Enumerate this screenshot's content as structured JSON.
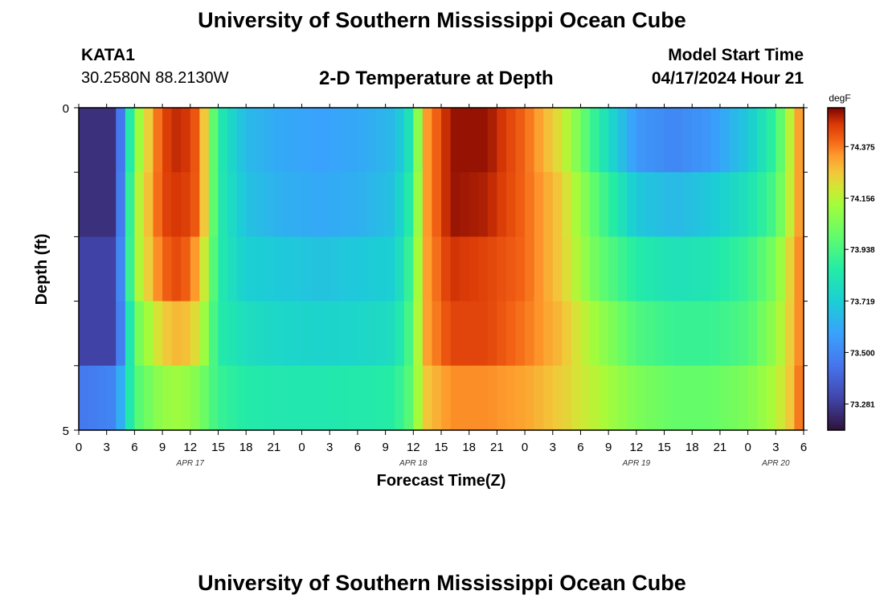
{
  "page": {
    "title": "University of Southern Mississippi Ocean Cube",
    "bottom_title": "University of Southern Mississippi Ocean Cube",
    "station_id": "KATA1",
    "station_coords": "30.2580N  88.2130W",
    "model_start_label": "Model Start Time",
    "model_start_value": "04/17/2024 Hour 21"
  },
  "chart_data": {
    "type": "heatmap",
    "title": "2-D Temperature at Depth",
    "xlabel": "Forecast Time(Z)",
    "ylabel": "Depth (ft)",
    "units": "degF",
    "x_ticks": [
      "0",
      "3",
      "6",
      "9",
      "12",
      "15",
      "18",
      "21",
      "0",
      "3",
      "6",
      "9",
      "12",
      "15",
      "18",
      "21",
      "0",
      "3",
      "6",
      "9",
      "12",
      "15",
      "18",
      "21",
      "0",
      "3",
      "6"
    ],
    "date_labels": [
      {
        "label": "APR 17",
        "hour_index": 12
      },
      {
        "label": "APR 18",
        "hour_index": 36
      },
      {
        "label": "APR 19",
        "hour_index": 60
      },
      {
        "label": "APR 20",
        "hour_index": 75
      }
    ],
    "x_range_hours": [
      0,
      78
    ],
    "y_range_ft": [
      0,
      5
    ],
    "y_tick_labels": [
      "0",
      "5"
    ],
    "depth_layers": 5,
    "colorbar_ticks": [
      "74.375",
      "74.156",
      "73.938",
      "73.719",
      "73.500",
      "73.281"
    ],
    "colorbar_tick_values": [
      74.375,
      74.156,
      73.938,
      73.719,
      73.5,
      73.281
    ],
    "vmin": 73.17,
    "vmax": 74.54,
    "time_hours": [
      0,
      4,
      6,
      9,
      11,
      13,
      15,
      18,
      22,
      26,
      30,
      34,
      36,
      37,
      40,
      44,
      48,
      52,
      56,
      60,
      64,
      68,
      72,
      75,
      77,
      78
    ],
    "series": [
      {
        "name": "0-1 ft",
        "values": [
          73.25,
          73.25,
          74.05,
          74.45,
          74.5,
          74.4,
          73.85,
          73.65,
          73.6,
          73.58,
          73.6,
          73.65,
          73.85,
          74.3,
          74.52,
          74.52,
          74.4,
          74.2,
          73.85,
          73.55,
          73.5,
          73.55,
          73.7,
          73.9,
          74.25,
          74.4
        ]
      },
      {
        "name": "1-2 ft",
        "values": [
          73.25,
          73.25,
          74.1,
          74.45,
          74.48,
          74.4,
          73.85,
          73.68,
          73.62,
          73.6,
          73.62,
          73.68,
          73.9,
          74.3,
          74.52,
          74.5,
          74.4,
          74.25,
          73.95,
          73.7,
          73.65,
          73.7,
          73.8,
          73.95,
          74.25,
          74.4
        ]
      },
      {
        "name": "2-3 ft",
        "values": [
          73.3,
          73.3,
          74.1,
          74.4,
          74.45,
          74.3,
          73.85,
          73.72,
          73.7,
          73.68,
          73.7,
          73.72,
          73.95,
          74.3,
          74.48,
          74.45,
          74.4,
          74.25,
          74.0,
          73.85,
          73.8,
          73.82,
          73.9,
          74.05,
          74.3,
          74.4
        ]
      },
      {
        "name": "3-4 ft",
        "values": [
          73.3,
          73.3,
          74.0,
          74.25,
          74.3,
          74.2,
          73.85,
          73.78,
          73.75,
          73.74,
          73.75,
          73.78,
          73.98,
          74.3,
          74.45,
          74.45,
          74.38,
          74.28,
          74.1,
          73.95,
          73.9,
          73.9,
          73.95,
          74.1,
          74.3,
          74.4
        ]
      },
      {
        "name": "4-5 ft",
        "values": [
          73.45,
          73.5,
          73.95,
          74.1,
          74.12,
          74.05,
          73.9,
          73.85,
          73.83,
          73.83,
          73.84,
          73.86,
          74.0,
          74.25,
          74.35,
          74.35,
          74.32,
          74.25,
          74.15,
          74.05,
          74.0,
          74.0,
          74.05,
          74.15,
          74.3,
          74.45
        ]
      }
    ]
  }
}
